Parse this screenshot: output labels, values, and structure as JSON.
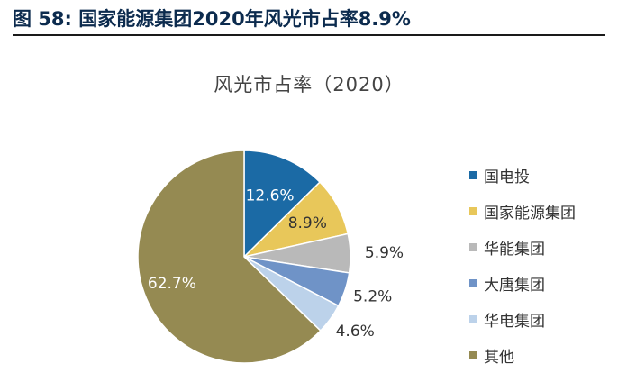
{
  "figure": {
    "label": "图 58:",
    "title": "国家能源集团2020年风光市占率8.9%"
  },
  "chart_data": {
    "type": "pie",
    "title": "风光市占率（2020）",
    "categories": [
      "国电投",
      "国家能源集团",
      "华能集团",
      "大唐集团",
      "华电集团",
      "其他"
    ],
    "values": [
      12.6,
      8.9,
      5.9,
      5.2,
      4.6,
      62.7
    ],
    "value_labels": [
      "12.6%",
      "8.9%",
      "5.9%",
      "5.2%",
      "4.6%",
      "62.7%"
    ],
    "unit": "%",
    "colors": [
      "#1b6aa5",
      "#e8c75a",
      "#b9b9b9",
      "#6f93c7",
      "#bcd2ea",
      "#958a52"
    ],
    "label_colors": [
      "#ffffff",
      "#333333",
      "#333333",
      "#333333",
      "#333333",
      "#ffffff"
    ],
    "legend_position": "right"
  }
}
